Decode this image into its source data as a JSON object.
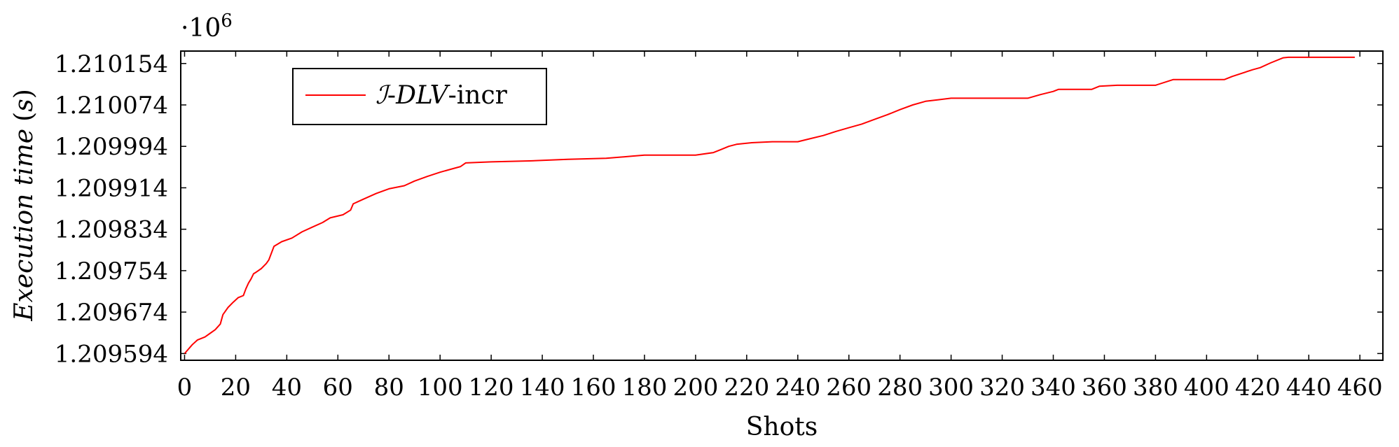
{
  "chart_data": {
    "type": "line",
    "title": "",
    "xlabel": "Shots",
    "ylabel": "Execution time (s)",
    "ylabel_parts": {
      "main": "Execution time",
      "open": "(",
      "unit": "s",
      "close": ")"
    },
    "y_multiplier": "·10",
    "y_multiplier_exp": "6",
    "xlim": [
      -1.5,
      469
    ],
    "ylim": [
      1.209581,
      1.210178
    ],
    "xticks": [
      0,
      20,
      40,
      60,
      80,
      100,
      120,
      140,
      160,
      180,
      200,
      220,
      240,
      260,
      280,
      300,
      320,
      340,
      360,
      380,
      400,
      420,
      440,
      460
    ],
    "yticks": [
      1.209594,
      1.209674,
      1.209754,
      1.209834,
      1.209914,
      1.209994,
      1.210074,
      1.210154
    ],
    "ytick_labels": [
      "1.209594",
      "1.209674",
      "1.209754",
      "1.209834",
      "1.209914",
      "1.209994",
      "1.210074",
      "1.210154"
    ],
    "grid": false,
    "legend_position": "top-left",
    "series": [
      {
        "name_parts": {
          "script": "ℐ",
          "dash": "-",
          "italic": "DLV",
          "rest": "-incr"
        },
        "color": "#ff0000",
        "x": [
          0,
          3,
          5,
          8,
          10,
          12,
          14,
          15,
          17,
          19,
          21,
          23,
          24,
          25,
          26,
          27,
          28,
          30,
          32,
          33,
          35,
          38,
          42,
          46,
          50,
          54,
          57,
          62,
          65,
          66,
          70,
          75,
          80,
          86,
          90,
          95,
          100,
          105,
          108,
          110,
          120,
          135,
          150,
          165,
          175,
          180,
          200,
          207,
          210,
          213,
          216,
          222,
          230,
          240,
          245,
          250,
          255,
          260,
          265,
          270,
          275,
          280,
          285,
          290,
          295,
          300,
          310,
          320,
          330,
          335,
          340,
          342,
          355,
          358,
          365,
          380,
          387,
          395,
          407,
          410,
          418,
          421,
          425,
          430,
          432,
          445,
          458
        ],
        "y": [
          1.209594,
          1.209611,
          1.20962,
          1.209626,
          1.209633,
          1.20964,
          1.209651,
          1.209669,
          1.209683,
          1.209693,
          1.209702,
          1.209706,
          1.209719,
          1.20973,
          1.209738,
          1.209748,
          1.209751,
          1.209758,
          1.209768,
          1.209775,
          1.209801,
          1.20981,
          1.209817,
          1.209829,
          1.209838,
          1.209847,
          1.209856,
          1.209862,
          1.209871,
          1.209883,
          1.209892,
          1.209903,
          1.209912,
          1.209918,
          1.209927,
          1.209936,
          1.209944,
          1.209951,
          1.209955,
          1.209962,
          1.209964,
          1.209966,
          1.209969,
          1.209971,
          1.209975,
          1.209977,
          1.209977,
          1.209982,
          1.209988,
          1.209994,
          1.209998,
          1.210001,
          1.210003,
          1.210003,
          1.210009,
          1.210015,
          1.210023,
          1.21003,
          1.210037,
          1.210046,
          1.210055,
          1.210065,
          1.210074,
          1.210081,
          1.210084,
          1.210087,
          1.210087,
          1.210087,
          1.210087,
          1.210094,
          1.2101,
          1.210104,
          1.210104,
          1.21011,
          1.210112,
          1.210112,
          1.210123,
          1.210123,
          1.210123,
          1.210129,
          1.210142,
          1.210146,
          1.210155,
          1.210165,
          1.210166,
          1.210166,
          1.210166
        ]
      }
    ]
  }
}
